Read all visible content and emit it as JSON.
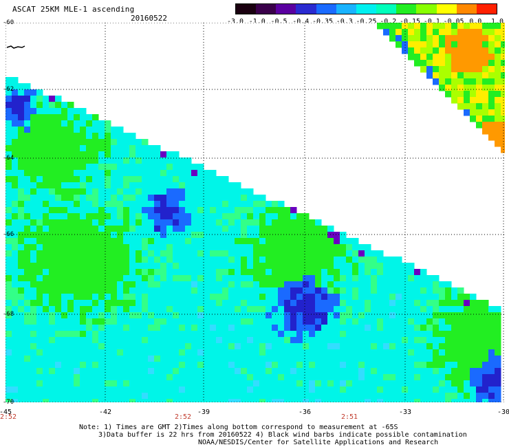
{
  "title": "ASCAT 25KM MLE-1 ascending",
  "date": "20160522",
  "colorbar": {
    "labels": [
      "-3.0",
      "-1.0",
      "-0.5",
      "-0.4",
      "-0.35",
      "-0.3",
      "-0.25",
      "-0.2",
      "-0.15",
      "-0.1",
      "-0.05",
      "0.0",
      "1.0"
    ],
    "colors": [
      "#1a0010",
      "#3a004a",
      "#5a00a0",
      "#2a2ad0",
      "#1a6aff",
      "#19b3ff",
      "#00f0f0",
      "#00ffbb",
      "#22ee22",
      "#88ff00",
      "#ffff00",
      "#ff8800",
      "#ff2000"
    ]
  },
  "map": {
    "lat_labels": [
      "-60",
      "-62",
      "-64",
      "-66",
      "-68",
      "-70"
    ],
    "lon_labels": [
      "-45",
      "-42",
      "-39",
      "-36",
      "-33",
      "-30"
    ],
    "time_labels": [
      "2:52",
      "2:52",
      "2:51"
    ],
    "bg_colors": {
      "base": "#00f5e8",
      "green": "#22ee22",
      "blue": "#1a6aff",
      "darkblue": "#2222cc",
      "purple": "#6a00c0",
      "yellow": "#ffee00",
      "orange": "#ff9900"
    }
  },
  "notes": [
    "Note: 1) Times are GMT 2)Times along bottom correspond to measurement at -65S",
    "3)Data buffer is 22 hrs from 20160522 4) Black wind barbs indicate possible contamination",
    "NOAA/NESDIS/Center for Satellite Applications and Research"
  ]
}
